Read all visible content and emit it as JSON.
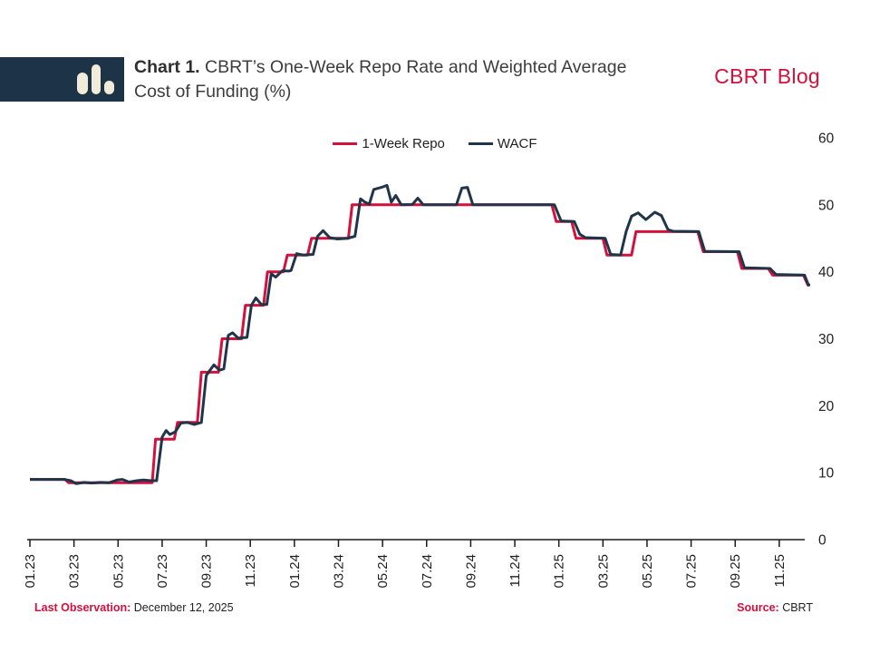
{
  "header": {
    "chart_label": "Chart 1.",
    "title_rest_line1": "CBRT’s One-Week Repo Rate and Weighted Average",
    "title_line2": "Cost of Funding (%)",
    "brand": "CBRT Blog"
  },
  "footer": {
    "last_observation_label": "Last Observation:",
    "last_observation_value": "December 12, 2025",
    "source_label": "Source:",
    "source_value": "CBRT"
  },
  "chart_data": {
    "type": "line",
    "title": "CBRT’s One-Week Repo Rate and Weighted Average Cost of Funding (%)",
    "x_unit": "months since Jan 2023 (m=0 is 01.23)",
    "ylim": [
      0,
      60
    ],
    "y_ticks": [
      0,
      10,
      20,
      30,
      40,
      50,
      60
    ],
    "x_ticks": [
      {
        "m": 0,
        "label": "01.23"
      },
      {
        "m": 2,
        "label": "03.23"
      },
      {
        "m": 4,
        "label": "05.23"
      },
      {
        "m": 6,
        "label": "07.23"
      },
      {
        "m": 8,
        "label": "09.23"
      },
      {
        "m": 10,
        "label": "11.23"
      },
      {
        "m": 12,
        "label": "01.24"
      },
      {
        "m": 14,
        "label": "03.24"
      },
      {
        "m": 16,
        "label": "05.24"
      },
      {
        "m": 18,
        "label": "07.24"
      },
      {
        "m": 20,
        "label": "09.24"
      },
      {
        "m": 22,
        "label": "11.24"
      },
      {
        "m": 24,
        "label": "01.25"
      },
      {
        "m": 26,
        "label": "03.25"
      },
      {
        "m": 28,
        "label": "05.25"
      },
      {
        "m": 30,
        "label": "07.25"
      },
      {
        "m": 32,
        "label": "09.25"
      },
      {
        "m": 34,
        "label": "11.25"
      }
    ],
    "grid": false,
    "legend_position": "top-center",
    "series": [
      {
        "name": "1-Week Repo",
        "color": "#d4103c",
        "points": [
          [
            0,
            9
          ],
          [
            1.6,
            9
          ],
          [
            1.75,
            8.5
          ],
          [
            5.55,
            8.5
          ],
          [
            5.7,
            15
          ],
          [
            6.55,
            15
          ],
          [
            6.7,
            17.5
          ],
          [
            7.6,
            17.5
          ],
          [
            7.78,
            25
          ],
          [
            8.55,
            25
          ],
          [
            8.72,
            30
          ],
          [
            9.6,
            30
          ],
          [
            9.78,
            35
          ],
          [
            10.6,
            35
          ],
          [
            10.78,
            40
          ],
          [
            11.5,
            40
          ],
          [
            11.68,
            42.5
          ],
          [
            12.6,
            42.5
          ],
          [
            12.78,
            45
          ],
          [
            14.45,
            45
          ],
          [
            14.62,
            50
          ],
          [
            23.68,
            50
          ],
          [
            23.88,
            47.5
          ],
          [
            24.58,
            47.5
          ],
          [
            24.78,
            45
          ],
          [
            26.0,
            45
          ],
          [
            26.18,
            42.5
          ],
          [
            27.3,
            42.5
          ],
          [
            27.5,
            46
          ],
          [
            30.3,
            46
          ],
          [
            30.55,
            43
          ],
          [
            32.1,
            43
          ],
          [
            32.3,
            40.5
          ],
          [
            33.5,
            40.5
          ],
          [
            33.7,
            39.5
          ],
          [
            35.1,
            39.5
          ],
          [
            35.3,
            38
          ],
          [
            35.35,
            38
          ]
        ]
      },
      {
        "name": "WACF",
        "color": "#20344a",
        "points": [
          [
            0,
            9
          ],
          [
            1.55,
            9
          ],
          [
            1.85,
            8.8
          ],
          [
            2.1,
            8.35
          ],
          [
            2.45,
            8.55
          ],
          [
            2.8,
            8.45
          ],
          [
            3.2,
            8.55
          ],
          [
            3.6,
            8.5
          ],
          [
            3.95,
            8.9
          ],
          [
            4.2,
            9.0
          ],
          [
            4.5,
            8.6
          ],
          [
            4.85,
            8.8
          ],
          [
            5.15,
            8.9
          ],
          [
            5.5,
            8.8
          ],
          [
            5.75,
            8.8
          ],
          [
            6.0,
            15.3
          ],
          [
            6.18,
            16.3
          ],
          [
            6.35,
            15.7
          ],
          [
            6.6,
            16.1
          ],
          [
            6.85,
            17.4
          ],
          [
            7.15,
            17.5
          ],
          [
            7.45,
            17.2
          ],
          [
            7.78,
            17.5
          ],
          [
            8.0,
            24.5
          ],
          [
            8.15,
            25.2
          ],
          [
            8.35,
            26.1
          ],
          [
            8.6,
            25.3
          ],
          [
            8.8,
            25.5
          ],
          [
            9.0,
            30.5
          ],
          [
            9.2,
            30.9
          ],
          [
            9.45,
            30.1
          ],
          [
            9.85,
            30.2
          ],
          [
            10.05,
            35.0
          ],
          [
            10.25,
            36.1
          ],
          [
            10.5,
            35.1
          ],
          [
            10.75,
            35.1
          ],
          [
            10.95,
            39.7
          ],
          [
            11.15,
            39.2
          ],
          [
            11.45,
            40.15
          ],
          [
            11.75,
            40.1
          ],
          [
            11.85,
            40.2
          ],
          [
            12.1,
            42.7
          ],
          [
            12.4,
            42.5
          ],
          [
            12.85,
            42.6
          ],
          [
            13.05,
            45.3
          ],
          [
            13.3,
            46.15
          ],
          [
            13.6,
            45.1
          ],
          [
            13.95,
            44.9
          ],
          [
            14.4,
            45.0
          ],
          [
            14.75,
            45.3
          ],
          [
            15.0,
            50.9
          ],
          [
            15.2,
            50.4
          ],
          [
            15.4,
            50.1
          ],
          [
            15.6,
            52.3
          ],
          [
            15.95,
            52.6
          ],
          [
            16.2,
            52.9
          ],
          [
            16.4,
            50.4
          ],
          [
            16.6,
            51.4
          ],
          [
            16.85,
            50.0
          ],
          [
            17.35,
            50.05
          ],
          [
            17.6,
            51.0
          ],
          [
            17.85,
            50.0
          ],
          [
            19.35,
            50.0
          ],
          [
            19.6,
            52.5
          ],
          [
            19.85,
            52.6
          ],
          [
            20.1,
            50.0
          ],
          [
            23.8,
            50.0
          ],
          [
            24.1,
            47.6
          ],
          [
            24.7,
            47.5
          ],
          [
            24.95,
            45.6
          ],
          [
            25.2,
            45.1
          ],
          [
            26.1,
            45.0
          ],
          [
            26.35,
            42.6
          ],
          [
            26.8,
            42.5
          ],
          [
            27.05,
            46.0
          ],
          [
            27.3,
            48.3
          ],
          [
            27.6,
            48.8
          ],
          [
            27.95,
            47.8
          ],
          [
            28.35,
            48.9
          ],
          [
            28.65,
            48.4
          ],
          [
            28.95,
            46.3
          ],
          [
            29.2,
            46.05
          ],
          [
            30.35,
            46.0
          ],
          [
            30.62,
            43.05
          ],
          [
            32.18,
            43.0
          ],
          [
            32.42,
            40.6
          ],
          [
            33.58,
            40.5
          ],
          [
            33.85,
            39.6
          ],
          [
            35.15,
            39.5
          ],
          [
            35.32,
            38.05
          ],
          [
            35.4,
            38.0
          ]
        ]
      }
    ]
  }
}
